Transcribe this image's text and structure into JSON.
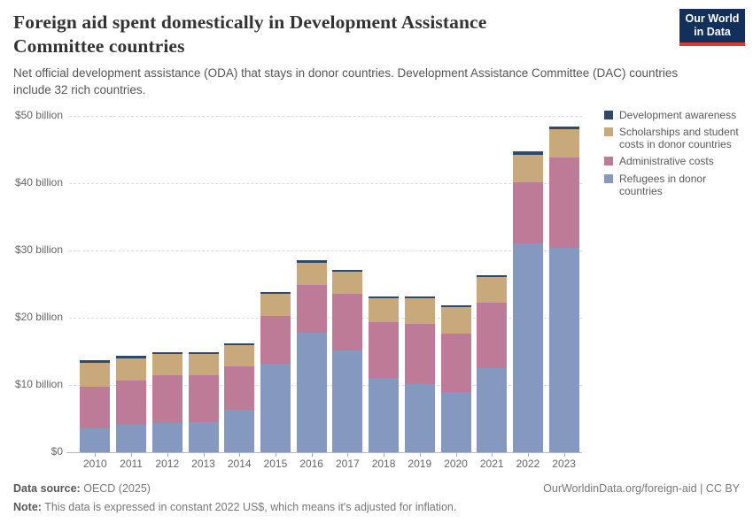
{
  "header": {
    "title_line1": "Foreign aid spent domestically in Development Assistance",
    "title_line2": "Committee countries",
    "subtitle": "Net official development assistance (ODA) that stays in donor countries. Development Assistance Committee (DAC) countries include 32 rich countries.",
    "logo_line1": "Our World",
    "logo_line2": "in Data",
    "logo_bg_color": "#12305b",
    "logo_stripe_color": "#dc3a2e"
  },
  "chart_data": {
    "type": "bar",
    "stacked": true,
    "title": "Foreign aid spent domestically in Development Assistance Committee countries",
    "unit": "US$ billion (constant 2022 US$)",
    "categories": [
      "2010",
      "2011",
      "2012",
      "2013",
      "2014",
      "2015",
      "2016",
      "2017",
      "2018",
      "2019",
      "2020",
      "2021",
      "2022",
      "2023"
    ],
    "series": [
      {
        "key": "refugees",
        "name": "Refugees in donor countries",
        "color": "#8498c0",
        "values": [
          3.5,
          4.1,
          4.3,
          4.5,
          6.3,
          13.2,
          17.7,
          15.1,
          11.0,
          10.1,
          8.9,
          12.5,
          31.0,
          30.4
        ]
      },
      {
        "key": "administrative",
        "name": "Administrative costs",
        "color": "#bd7b97",
        "values": [
          6.3,
          6.5,
          7.1,
          7.0,
          6.4,
          7.1,
          7.2,
          8.4,
          8.3,
          9.0,
          8.7,
          9.7,
          9.1,
          13.4
        ]
      },
      {
        "key": "scholarships",
        "name": "Scholarships and student costs in donor countries",
        "color": "#c8a97c",
        "values": [
          3.5,
          3.3,
          3.2,
          3.1,
          3.2,
          3.2,
          3.3,
          3.3,
          3.6,
          3.8,
          4.0,
          3.8,
          4.1,
          4.2
        ]
      },
      {
        "key": "awareness",
        "name": "Development awareness",
        "color": "#2d4a6c",
        "values": [
          0.4,
          0.4,
          0.3,
          0.3,
          0.3,
          0.3,
          0.3,
          0.3,
          0.3,
          0.3,
          0.3,
          0.3,
          0.5,
          0.4
        ]
      }
    ],
    "yticks": [
      {
        "value": 0,
        "label": "$0"
      },
      {
        "value": 10,
        "label": "$10 billion"
      },
      {
        "value": 20,
        "label": "$20 billion"
      },
      {
        "value": 30,
        "label": "$30 billion"
      },
      {
        "value": 40,
        "label": "$40 billion"
      },
      {
        "value": 50,
        "label": "$50 billion"
      }
    ],
    "ylim": [
      0,
      50
    ],
    "grid": "horizontal-dashed",
    "legend_position": "right"
  },
  "legend": {
    "items": [
      {
        "label": "Development awareness",
        "color": "#2d4a6c"
      },
      {
        "label": "Scholarships and student costs in donor countries",
        "color": "#c8a97c"
      },
      {
        "label": "Administrative costs",
        "color": "#bd7b97"
      },
      {
        "label": "Refugees in donor countries",
        "color": "#8498c0"
      }
    ]
  },
  "footer": {
    "source_label": "Data source:",
    "source_value": "OECD (2025)",
    "link": "OurWorldinData.org/foreign-aid | CC BY",
    "note_label": "Note:",
    "note_text": "This data is expressed in constant 2022 US$, which means it's adjusted for inflation."
  }
}
